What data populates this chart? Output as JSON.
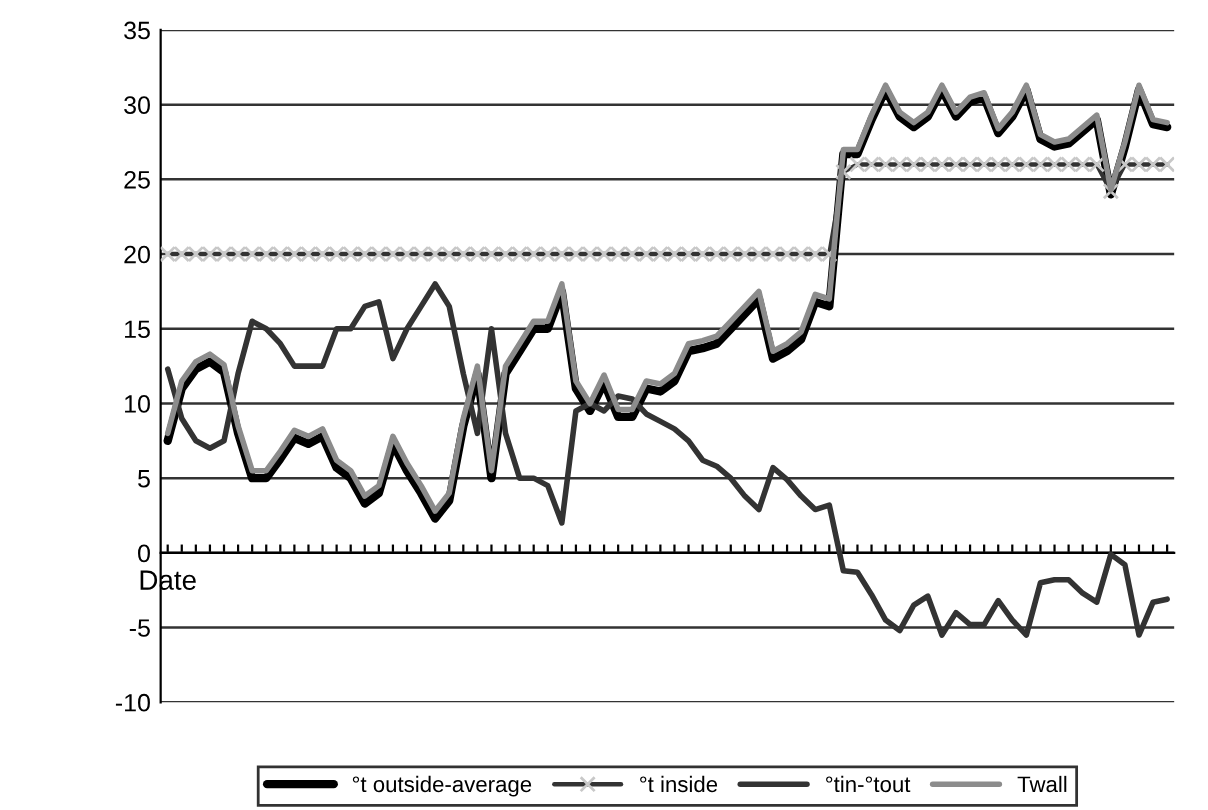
{
  "chart_data": {
    "type": "line",
    "categories": [
      "Date",
      null,
      null,
      null,
      null,
      null,
      null,
      null,
      null,
      null,
      null,
      null,
      null,
      null,
      null,
      null,
      null,
      null,
      null,
      null,
      null,
      null,
      null,
      null,
      null,
      null,
      null,
      null,
      null,
      null,
      null,
      null,
      null,
      null,
      null,
      null,
      null,
      null,
      null,
      null,
      null,
      null,
      null,
      null,
      null,
      null,
      null,
      null,
      null,
      null,
      null,
      null,
      null,
      null,
      null,
      null,
      null,
      null,
      null,
      null,
      null,
      null,
      null,
      null,
      null,
      null,
      null,
      null,
      null,
      null,
      null,
      null
    ],
    "series": [
      {
        "name": "°t outside-average",
        "color": "#000000",
        "marker": "none",
        "values": [
          7.5,
          11,
          12.3,
          12.8,
          12.1,
          8,
          5,
          5,
          6.3,
          7.7,
          7.3,
          7.8,
          5.7,
          5,
          3.3,
          4,
          7.3,
          5.5,
          4,
          2.3,
          3.5,
          8.5,
          12,
          5,
          12,
          13.5,
          15,
          15,
          17.5,
          11,
          9.5,
          11.4,
          9.1,
          9.1,
          11,
          10.8,
          11.5,
          13.5,
          13.7,
          14,
          15,
          16,
          17,
          13,
          13.5,
          14.3,
          16.8,
          16.5,
          26.7,
          26.7,
          29,
          31,
          29.2,
          28.5,
          29.2,
          31,
          29.2,
          30.2,
          30.5,
          28.1,
          29.2,
          31,
          27.7,
          27.2,
          27.4,
          28.2,
          29,
          24,
          27.2,
          31,
          28.7,
          28.5
        ]
      },
      {
        "name": "°t inside",
        "color": "#333333",
        "marker": "cross",
        "values": [
          20,
          20,
          20,
          20,
          20,
          20,
          20,
          20,
          20,
          20,
          20,
          20,
          20,
          20,
          20,
          20,
          20,
          20,
          20,
          20,
          20,
          20,
          20,
          20,
          20,
          20,
          20,
          20,
          20,
          20,
          20,
          20,
          20,
          20,
          20,
          20,
          20,
          20,
          20,
          20,
          20,
          20,
          20,
          20,
          20,
          20,
          20,
          20,
          25.5,
          26,
          26,
          26,
          26,
          26,
          26,
          26,
          26,
          26,
          26,
          26,
          26,
          26,
          26,
          26,
          26,
          26,
          26,
          24.2,
          26,
          26,
          26,
          26
        ]
      },
      {
        "name": "°tin-°tout",
        "color": "#333333",
        "marker": "none",
        "values": [
          12.3,
          9,
          7.5,
          7,
          7.5,
          12,
          15.5,
          15,
          14,
          12.5,
          12.5,
          12.5,
          15,
          15,
          16.5,
          16.8,
          13,
          15,
          16.5,
          18,
          16.5,
          12,
          8,
          15,
          8,
          5,
          5,
          4.5,
          2,
          9.5,
          10,
          9.5,
          10.5,
          10.3,
          9.3,
          8.8,
          8.3,
          7.5,
          6.2,
          5.8,
          5,
          3.8,
          2.9,
          5.7,
          4.9,
          3.8,
          2.9,
          3.2,
          -1.2,
          -1.3,
          -2.8,
          -4.5,
          -5.2,
          -3.5,
          -2.9,
          -5.5,
          -4,
          -4.8,
          -4.8,
          -3.2,
          -4.5,
          -5.5,
          -2,
          -1.8,
          -1.8,
          -2.7,
          -3.3,
          -0.1,
          -0.8,
          -5.5,
          -3.3,
          -3.1
        ]
      },
      {
        "name": "Twall",
        "color": "#8c8c8c",
        "marker": "none",
        "values": [
          8,
          11.5,
          12.8,
          13.3,
          12.6,
          8.5,
          5.5,
          5.5,
          6.8,
          8.2,
          7.8,
          8.3,
          6.2,
          5.5,
          3.8,
          4.5,
          7.8,
          6,
          4.5,
          2.8,
          4,
          9,
          12.5,
          5.5,
          12.5,
          14,
          15.5,
          15.5,
          18,
          11.5,
          10,
          11.9,
          9.6,
          9.6,
          11.5,
          11.3,
          12,
          14,
          14.2,
          14.5,
          15.5,
          16.5,
          17.5,
          13.5,
          14,
          14.8,
          17.3,
          17,
          27,
          27,
          29.3,
          31.3,
          29.5,
          28.8,
          29.5,
          31.3,
          29.5,
          30.5,
          30.8,
          28.4,
          29.5,
          31.3,
          28,
          27.5,
          27.7,
          28.5,
          29.3,
          24.3,
          27.5,
          31.3,
          29,
          28.8
        ]
      }
    ],
    "ylim": [
      -10,
      35
    ],
    "yticks": [
      -10,
      -5,
      0,
      5,
      10,
      15,
      20,
      25,
      30,
      35
    ],
    "grid": "y",
    "legend": "bottom"
  }
}
